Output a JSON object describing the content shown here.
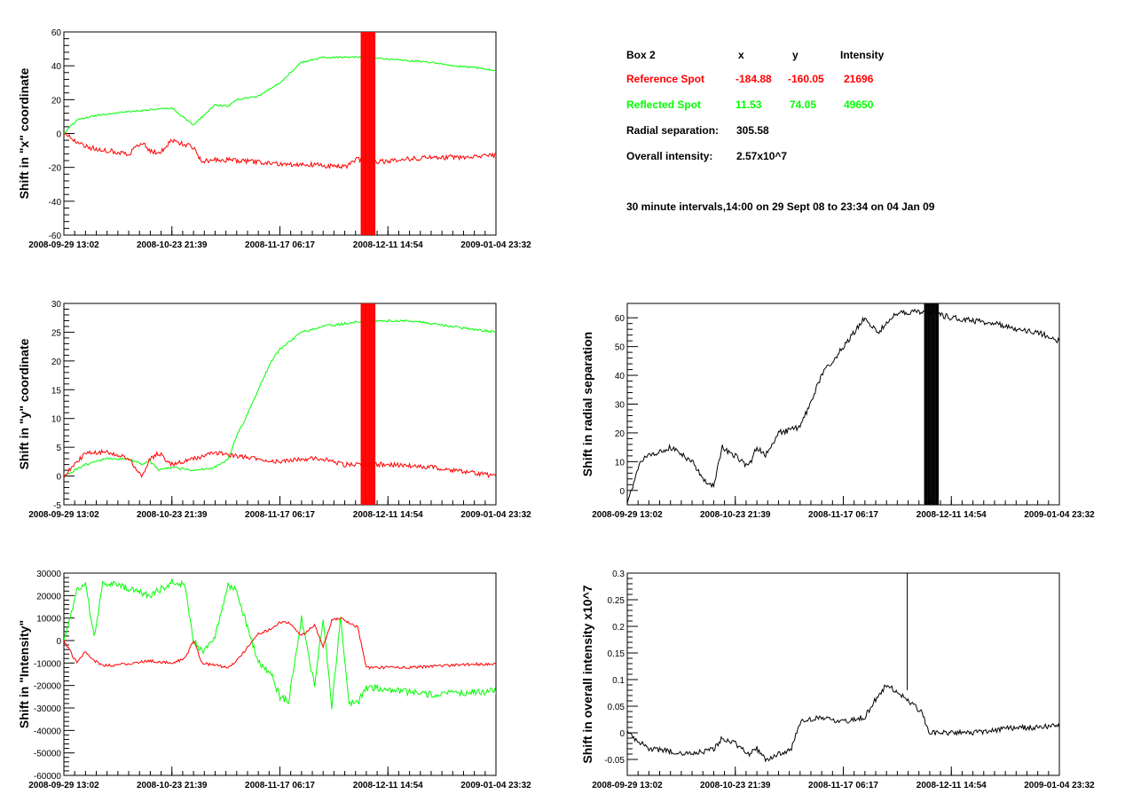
{
  "info_panel": {
    "header": {
      "box": "Box 2",
      "x": "x",
      "y": "y",
      "intensity": "Intensity"
    },
    "reference": {
      "label": "Reference Spot",
      "x": "-184.88",
      "y": "-160.05",
      "intensity": "21696",
      "color": "#ff0000"
    },
    "reflected": {
      "label": "Reflected Spot",
      "x": "11.53",
      "y": "74.05",
      "intensity": "49650",
      "color": "#00ff00"
    },
    "radial": {
      "label": "Radial separation:",
      "value": "305.58"
    },
    "overall": {
      "label": "Overall intensity:",
      "value": "2.57x10^7"
    },
    "note": "30 minute intervals,14:00 on 29 Sept 08 to 23:34 on 04 Jan 09"
  },
  "chart_data": [
    {
      "id": "x-shift",
      "type": "line",
      "ylabel": "Shift in \"x\" coordinate",
      "ylim": [
        -60,
        60
      ],
      "yticks": [
        -60,
        -40,
        -20,
        0,
        20,
        40,
        60
      ],
      "xticklabels": [
        "2008-09-29 13:02",
        "2008-10-23 21:39",
        "2008-11-17 06:17",
        "2008-12-11 14:54",
        "2009-01-04 23:32"
      ],
      "series": [
        {
          "color": "#00ff00",
          "noise": 0.5,
          "x": [
            0,
            3,
            8,
            15,
            20,
            25,
            30,
            35,
            38,
            40,
            45,
            50,
            52,
            55,
            60,
            65,
            70,
            75,
            80,
            85,
            90,
            95,
            100
          ],
          "y": [
            0,
            8,
            11,
            13,
            14,
            15,
            5,
            17,
            16,
            20,
            22,
            30,
            35,
            42,
            45,
            45,
            45,
            44,
            43,
            42,
            40,
            39,
            37
          ]
        },
        {
          "color": "#ff0000",
          "noise": 1.5,
          "x": [
            0,
            5,
            10,
            15,
            18,
            20,
            22,
            25,
            30,
            32,
            35,
            40,
            45,
            50,
            55,
            60,
            65,
            68,
            70,
            75,
            80,
            85,
            90,
            95,
            100
          ],
          "y": [
            0,
            -8,
            -10,
            -12,
            -5,
            -10,
            -12,
            -4,
            -8,
            -17,
            -15,
            -16,
            -17,
            -18,
            -18,
            -19,
            -20,
            -15,
            -17,
            -16,
            -15,
            -14,
            -14,
            -14,
            -13
          ]
        }
      ],
      "spikes": [
        {
          "color": "#ff0000",
          "x0": 68.8,
          "x1": 72,
          "count": 20
        }
      ]
    },
    {
      "id": "y-shift",
      "type": "line",
      "ylabel": "Shift in \"y\" coordinate",
      "ylim": [
        -5,
        30
      ],
      "yticks": [
        -5,
        0,
        5,
        10,
        15,
        20,
        25,
        30
      ],
      "xticklabels": [
        "2008-09-29 13:02",
        "2008-10-23 21:39",
        "2008-11-17 06:17",
        "2008-12-11 14:54",
        "2009-01-04 23:32"
      ],
      "series": [
        {
          "color": "#00ff00",
          "noise": 0.2,
          "x": [
            0,
            5,
            10,
            15,
            18,
            20,
            22,
            25,
            30,
            35,
            38,
            40,
            42,
            45,
            48,
            50,
            55,
            60,
            65,
            70,
            75,
            80,
            85,
            90,
            95,
            100
          ],
          "y": [
            0,
            2,
            3,
            3,
            2,
            2.5,
            1,
            1.5,
            1,
            1.5,
            3,
            7,
            10,
            15,
            20,
            22,
            25,
            26,
            26.5,
            27,
            27,
            27,
            26.5,
            26,
            25.5,
            25
          ]
        },
        {
          "color": "#ff0000",
          "noise": 0.4,
          "x": [
            0,
            5,
            10,
            15,
            18,
            20,
            22,
            25,
            30,
            35,
            40,
            45,
            50,
            55,
            60,
            65,
            70,
            75,
            80,
            85,
            90,
            95,
            100
          ],
          "y": [
            0,
            4,
            4.2,
            3,
            0,
            3,
            4,
            2,
            3,
            4,
            3.5,
            3,
            2.5,
            3,
            3,
            2,
            2,
            2,
            1.8,
            1.5,
            1,
            0.5,
            0
          ]
        }
      ],
      "spikes": [
        {
          "color": "#ff0000",
          "x0": 68.8,
          "x1": 72,
          "count": 20
        }
      ]
    },
    {
      "id": "intensity-shift",
      "type": "line",
      "ylabel": "Shift in \"Intensity\"",
      "ylim": [
        -60000,
        30000
      ],
      "yticks": [
        -60000,
        -50000,
        -40000,
        -30000,
        -20000,
        -10000,
        0,
        10000,
        20000,
        30000
      ],
      "xticklabels": [
        "2008-09-29 13:02",
        "2008-10-23 21:39",
        "2008-11-17 06:17",
        "2008-12-11 14:54",
        "2009-01-04 23:32"
      ],
      "series": [
        {
          "color": "#00ff00",
          "noise": 1500,
          "x": [
            0,
            3,
            5,
            7,
            9,
            12,
            20,
            25,
            28,
            30,
            32,
            35,
            38,
            40,
            45,
            48,
            50,
            52,
            55,
            58,
            60,
            62,
            64,
            66,
            68,
            70,
            72,
            75,
            80,
            85,
            90,
            95,
            100
          ],
          "y": [
            0,
            22000,
            25000,
            2000,
            25000,
            25000,
            20000,
            26000,
            25000,
            0,
            -5000,
            2000,
            25000,
            22000,
            -10000,
            -15000,
            -25000,
            -27000,
            10000,
            -20000,
            10000,
            -30000,
            10000,
            -28000,
            -28000,
            -21000,
            -21000,
            -22000,
            -23000,
            -24000,
            -23500,
            -23000,
            -22500
          ]
        },
        {
          "color": "#ff0000",
          "noise": 600,
          "x": [
            0,
            3,
            5,
            7,
            9,
            12,
            20,
            25,
            28,
            30,
            32,
            35,
            38,
            40,
            45,
            48,
            50,
            52,
            55,
            58,
            60,
            62,
            64,
            66,
            68,
            70,
            72,
            75,
            80,
            85,
            90,
            95,
            100
          ],
          "y": [
            0,
            -10000,
            -5000,
            -9000,
            -11000,
            -11000,
            -9000,
            -10000,
            -8000,
            0,
            -10000,
            -11000,
            -12000,
            -9000,
            3000,
            5000,
            8000,
            8000,
            2000,
            7000,
            -3000,
            9000,
            10000,
            8000,
            6000,
            -12000,
            -12000,
            -12000,
            -12000,
            -11500,
            -11000,
            -10500,
            -10500
          ]
        }
      ],
      "spikes": []
    },
    {
      "id": "radial-shift",
      "type": "line",
      "ylabel": "Shift in radial separation",
      "ylim": [
        -5,
        65
      ],
      "yticks": [
        0,
        10,
        20,
        30,
        40,
        50,
        60
      ],
      "xticklabels": [
        "2008-09-29 13:02",
        "2008-10-23 21:39",
        "2008-11-17 06:17",
        "2008-12-11 14:54",
        "2009-01-04 23:32"
      ],
      "series": [
        {
          "color": "#000000",
          "noise": 1.0,
          "x": [
            0,
            3,
            5,
            10,
            15,
            18,
            20,
            22,
            25,
            28,
            30,
            32,
            35,
            40,
            45,
            50,
            55,
            58,
            60,
            62,
            65,
            70,
            75,
            80,
            85,
            90,
            95,
            100
          ],
          "y": [
            -5,
            10,
            12,
            15,
            10,
            3,
            2,
            15,
            12,
            8,
            15,
            12,
            20,
            22,
            40,
            50,
            60,
            55,
            58,
            61,
            62,
            62,
            60,
            59,
            58,
            56,
            55,
            52
          ]
        }
      ],
      "spikes": [
        {
          "color": "#000000",
          "x0": 68.8,
          "x1": 72,
          "count": 20
        }
      ]
    },
    {
      "id": "overall-intensity-shift",
      "type": "line",
      "ylabel": "Shift in overall intensity x10^7",
      "ylim": [
        -0.08,
        0.3
      ],
      "yticks": [
        -0.05,
        0,
        0.05,
        0.1,
        0.15,
        0.2,
        0.25,
        0.3
      ],
      "xticklabels": [
        "2008-09-29 13:02",
        "2008-10-23 21:39",
        "2008-11-17 06:17",
        "2008-12-11 14:54",
        "2009-01-04 23:32"
      ],
      "series": [
        {
          "color": "#000000",
          "noise": 0.005,
          "x": [
            0,
            5,
            10,
            15,
            20,
            22,
            25,
            28,
            30,
            32,
            35,
            38,
            40,
            45,
            50,
            55,
            58,
            60,
            62,
            65,
            68,
            70,
            75,
            80,
            85,
            90,
            95,
            100
          ],
          "y": [
            0,
            -0.03,
            -0.035,
            -0.04,
            -0.03,
            -0.01,
            -0.02,
            -0.04,
            -0.03,
            -0.05,
            -0.04,
            -0.03,
            0.02,
            0.03,
            0.02,
            0.03,
            0.07,
            0.09,
            0.08,
            0.06,
            0.04,
            0,
            0,
            0,
            0.005,
            0.01,
            0.01,
            0.015
          ]
        }
      ],
      "spikes": [
        {
          "color": "#000000",
          "x0": 64.8,
          "x1": 64.8,
          "count": 1,
          "yval": 0.3
        }
      ]
    }
  ]
}
